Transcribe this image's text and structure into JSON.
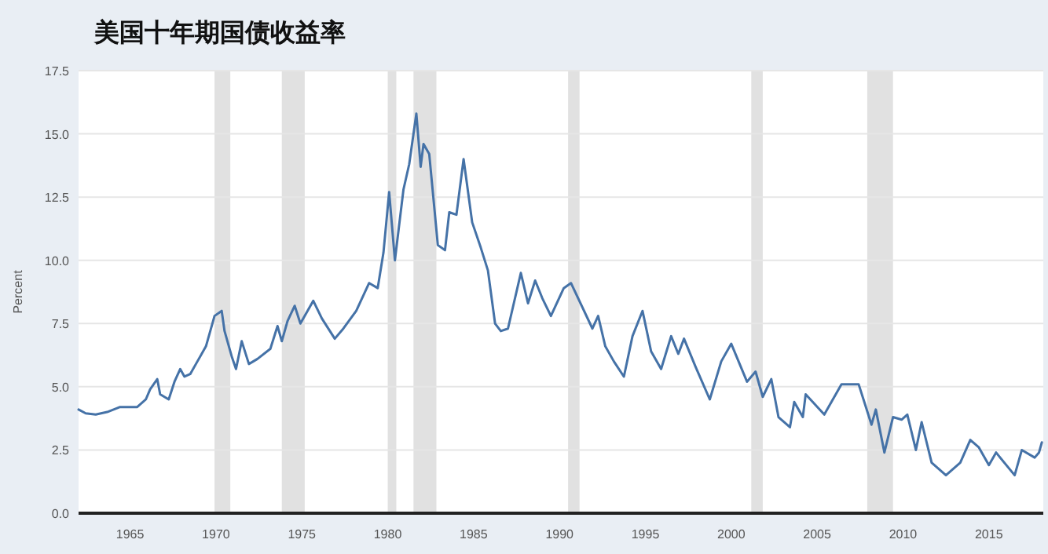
{
  "chart_data": {
    "type": "line",
    "title": "美国十年期国债收益率",
    "ylabel": "Percent",
    "xlim": [
      "1962-01",
      "2018-03"
    ],
    "xticks": [
      "1965",
      "1970",
      "1975",
      "1980",
      "1985",
      "1990",
      "1995",
      "2000",
      "2005",
      "2010",
      "2015"
    ],
    "ylim": [
      0,
      17.5
    ],
    "yticks": [
      {
        "value": 0,
        "label": "0.0"
      },
      {
        "value": 2.5,
        "label": "2.5"
      },
      {
        "value": 5,
        "label": "5.0"
      },
      {
        "value": 7.5,
        "label": "7.5"
      },
      {
        "value": 10,
        "label": "10.0"
      },
      {
        "value": 12.5,
        "label": "12.5"
      },
      {
        "value": 15,
        "label": "15.0"
      },
      {
        "value": 17.5,
        "label": "17.5"
      }
    ],
    "grid": "y",
    "bands": [
      {
        "axis": "x",
        "from": "1969-12",
        "to": "1970-11",
        "color": "#e1e1e1"
      },
      {
        "axis": "x",
        "from": "1973-11",
        "to": "1975-03",
        "color": "#e1e1e1"
      },
      {
        "axis": "x",
        "from": "1980-01",
        "to": "1980-07",
        "color": "#e1e1e1"
      },
      {
        "axis": "x",
        "from": "1981-07",
        "to": "1982-11",
        "color": "#e1e1e1"
      },
      {
        "axis": "x",
        "from": "1990-07",
        "to": "1991-03",
        "color": "#e1e1e1"
      },
      {
        "axis": "x",
        "from": "2001-03",
        "to": "2001-11",
        "color": "#e1e1e1"
      },
      {
        "axis": "x",
        "from": "2007-12",
        "to": "2009-06",
        "color": "#e1e1e1"
      }
    ],
    "x": [
      "1962-01",
      "1962-06",
      "1963-01",
      "1963-09",
      "1964-06",
      "1965-06",
      "1965-12",
      "1966-03",
      "1966-08",
      "1966-10",
      "1967-04",
      "1967-08",
      "1967-12",
      "1968-03",
      "1968-07",
      "1968-12",
      "1969-06",
      "1969-12",
      "1970-05",
      "1970-07",
      "1970-12",
      "1971-03",
      "1971-07",
      "1971-12",
      "1972-06",
      "1973-03",
      "1973-08",
      "1973-11",
      "1974-03",
      "1974-08",
      "1974-12",
      "1975-09",
      "1976-03",
      "1976-12",
      "1977-06",
      "1978-03",
      "1978-12",
      "1979-06",
      "1979-10",
      "1980-02",
      "1980-06",
      "1980-12",
      "1981-04",
      "1981-09",
      "1981-12",
      "1982-02",
      "1982-06",
      "1982-12",
      "1983-05",
      "1983-08",
      "1984-01",
      "1984-06",
      "1984-12",
      "1985-06",
      "1985-11",
      "1986-04",
      "1986-08",
      "1987-01",
      "1987-10",
      "1988-03",
      "1988-08",
      "1989-01",
      "1989-07",
      "1990-04",
      "1990-09",
      "1991-12",
      "1992-04",
      "1992-09",
      "1993-03",
      "1993-10",
      "1994-04",
      "1994-11",
      "1995-05",
      "1995-12",
      "1996-07",
      "1996-12",
      "1997-04",
      "1997-12",
      "1998-10",
      "1999-06",
      "2000-01",
      "2000-12",
      "2001-06",
      "2001-11",
      "2002-05",
      "2002-10",
      "2003-06",
      "2003-09",
      "2004-03",
      "2004-05",
      "2005-06",
      "2006-06",
      "2007-06",
      "2008-03",
      "2008-06",
      "2008-12",
      "2009-06",
      "2009-12",
      "2010-04",
      "2010-10",
      "2011-02",
      "2011-09",
      "2012-07",
      "2013-05",
      "2013-12",
      "2014-06",
      "2015-01",
      "2015-06",
      "2016-07",
      "2016-12",
      "2017-09",
      "2017-12",
      "2018-02"
    ],
    "series": [
      {
        "color": "#4572a7",
        "values": [
          4.1,
          3.95,
          3.9,
          4.0,
          4.2,
          4.2,
          4.5,
          4.9,
          5.3,
          4.7,
          4.5,
          5.2,
          5.7,
          5.4,
          5.5,
          6.0,
          6.6,
          7.8,
          8.0,
          7.2,
          6.2,
          5.7,
          6.8,
          5.9,
          6.1,
          6.5,
          7.4,
          6.8,
          7.6,
          8.2,
          7.5,
          8.4,
          7.7,
          6.9,
          7.3,
          8.0,
          9.1,
          8.9,
          10.3,
          12.7,
          10.0,
          12.8,
          13.8,
          15.8,
          13.7,
          14.6,
          14.2,
          10.6,
          10.4,
          11.9,
          11.8,
          14.0,
          11.5,
          10.5,
          9.6,
          7.5,
          7.2,
          7.3,
          9.5,
          8.3,
          9.2,
          8.5,
          7.8,
          8.9,
          9.1,
          7.3,
          7.8,
          6.6,
          6.0,
          5.4,
          7.0,
          8.0,
          6.4,
          5.7,
          7.0,
          6.3,
          6.9,
          5.8,
          4.5,
          6.0,
          6.7,
          5.2,
          5.6,
          4.6,
          5.3,
          3.8,
          3.4,
          4.4,
          3.8,
          4.7,
          3.9,
          5.1,
          5.1,
          3.5,
          4.1,
          2.4,
          3.8,
          3.7,
          3.9,
          2.5,
          3.6,
          2.0,
          1.5,
          2.0,
          2.9,
          2.6,
          1.9,
          2.4,
          1.5,
          2.5,
          2.2,
          2.4,
          2.8
        ]
      }
    ]
  }
}
